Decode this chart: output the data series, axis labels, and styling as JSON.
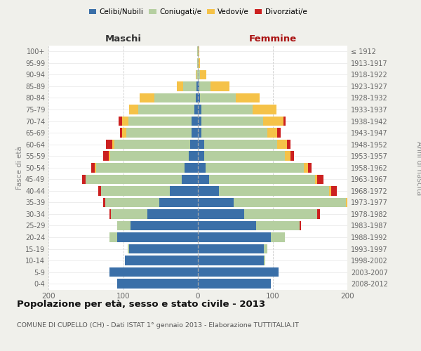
{
  "age_groups": [
    "0-4",
    "5-9",
    "10-14",
    "15-19",
    "20-24",
    "25-29",
    "30-34",
    "35-39",
    "40-44",
    "45-49",
    "50-54",
    "55-59",
    "60-64",
    "65-69",
    "70-74",
    "75-79",
    "80-84",
    "85-89",
    "90-94",
    "95-99",
    "100+"
  ],
  "birth_years": [
    "2008-2012",
    "2003-2007",
    "1998-2002",
    "1993-1997",
    "1988-1992",
    "1983-1987",
    "1978-1982",
    "1973-1977",
    "1968-1972",
    "1963-1967",
    "1958-1962",
    "1953-1957",
    "1948-1952",
    "1943-1947",
    "1938-1942",
    "1933-1937",
    "1928-1932",
    "1923-1927",
    "1918-1922",
    "1913-1917",
    "≤ 1912"
  ],
  "males": {
    "celibe": [
      108,
      118,
      98,
      92,
      108,
      90,
      68,
      52,
      38,
      22,
      18,
      12,
      10,
      8,
      8,
      5,
      3,
      2,
      0,
      0,
      0
    ],
    "coniugato": [
      0,
      0,
      0,
      2,
      10,
      18,
      48,
      72,
      92,
      128,
      118,
      105,
      102,
      88,
      85,
      75,
      55,
      18,
      2,
      1,
      1
    ],
    "vedovo": [
      0,
      0,
      0,
      0,
      0,
      0,
      0,
      0,
      0,
      0,
      2,
      2,
      3,
      5,
      8,
      12,
      20,
      8,
      1,
      0,
      0
    ],
    "divorziato": [
      0,
      0,
      0,
      0,
      0,
      0,
      2,
      3,
      3,
      5,
      5,
      8,
      8,
      3,
      5,
      0,
      0,
      0,
      0,
      0,
      0
    ]
  },
  "females": {
    "nubile": [
      98,
      108,
      88,
      88,
      98,
      78,
      62,
      48,
      28,
      15,
      10,
      8,
      8,
      5,
      5,
      5,
      3,
      2,
      0,
      0,
      0
    ],
    "coniugata": [
      0,
      0,
      2,
      5,
      18,
      58,
      98,
      150,
      148,
      142,
      132,
      108,
      98,
      88,
      82,
      68,
      48,
      15,
      3,
      1,
      1
    ],
    "vedova": [
      0,
      0,
      0,
      0,
      0,
      0,
      0,
      2,
      2,
      3,
      5,
      8,
      13,
      13,
      28,
      32,
      32,
      25,
      8,
      2,
      1
    ],
    "divorziata": [
      0,
      0,
      0,
      0,
      0,
      2,
      3,
      8,
      8,
      8,
      5,
      5,
      5,
      5,
      2,
      0,
      0,
      0,
      0,
      0,
      0
    ]
  },
  "colors": {
    "celibe": "#3a6fa8",
    "coniugato": "#b5cfa0",
    "vedovo": "#f5c248",
    "divorziato": "#cc2020"
  },
  "xlim": 200,
  "title": "Popolazione per età, sesso e stato civile - 2013",
  "subtitle": "COMUNE DI CUPELLO (CH) - Dati ISTAT 1° gennaio 2013 - Elaborazione TUTTITALIA.IT",
  "ylabel_left": "Fasce di età",
  "ylabel_right": "Anni di nascita",
  "xlabel_left": "Maschi",
  "xlabel_right": "Femmine",
  "bg_color": "#f0f0eb",
  "plot_bg": "#ffffff"
}
